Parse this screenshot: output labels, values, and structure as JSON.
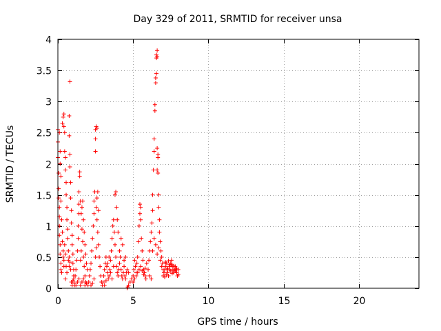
{
  "chart_data": {
    "type": "scatter",
    "title": "Day 329 of 2011, SRMTID for receiver unsa",
    "xlabel": "GPS time / hours",
    "ylabel": "SRMTID / TECUs",
    "xlim": [
      0,
      24
    ],
    "ylim": [
      0,
      4
    ],
    "x_ticks": [
      0,
      5,
      10,
      15,
      20
    ],
    "x_tick_labels": [
      "0",
      "5",
      "10",
      "15",
      "20"
    ],
    "y_ticks": [
      0,
      0.5,
      1,
      1.5,
      2,
      2.5,
      3,
      3.5,
      4
    ],
    "y_tick_labels": [
      "0",
      "0.5",
      "1",
      "1.5",
      "2",
      "2.5",
      "3",
      "3.5",
      "4"
    ],
    "grid": true,
    "marker": "+",
    "marker_color": "#ff0000",
    "series": [
      {
        "name": "SRMTID",
        "points": [
          [
            0.0,
            2.55
          ],
          [
            0.0,
            2.35
          ],
          [
            0.0,
            2.1
          ],
          [
            0.05,
            1.85
          ],
          [
            0.05,
            1.6
          ],
          [
            0.05,
            1.45
          ],
          [
            0.1,
            1.3
          ],
          [
            0.1,
            1.15
          ],
          [
            0.1,
            1.0
          ],
          [
            0.1,
            0.85
          ],
          [
            0.15,
            0.7
          ],
          [
            0.15,
            0.55
          ],
          [
            0.2,
            0.4
          ],
          [
            0.2,
            0.3
          ],
          [
            0.25,
            0.25
          ],
          [
            0.1,
            2.5
          ],
          [
            0.15,
            2.2
          ],
          [
            0.15,
            2.0
          ],
          [
            0.2,
            1.8
          ],
          [
            0.2,
            1.4
          ],
          [
            0.25,
            1.1
          ],
          [
            0.3,
            0.9
          ],
          [
            0.3,
            0.75
          ],
          [
            0.35,
            0.6
          ],
          [
            0.35,
            0.5
          ],
          [
            0.4,
            0.45
          ],
          [
            0.4,
            0.35
          ],
          [
            0.3,
            2.65
          ],
          [
            0.35,
            2.75
          ],
          [
            0.4,
            2.8
          ],
          [
            0.4,
            2.6
          ],
          [
            0.45,
            2.5
          ],
          [
            0.45,
            2.2
          ],
          [
            0.5,
            2.1
          ],
          [
            0.5,
            1.9
          ],
          [
            0.55,
            1.7
          ],
          [
            0.55,
            1.5
          ],
          [
            0.6,
            1.3
          ],
          [
            0.6,
            1.1
          ],
          [
            0.65,
            0.95
          ],
          [
            0.65,
            0.8
          ],
          [
            0.7,
            0.6
          ],
          [
            0.7,
            0.45
          ],
          [
            0.75,
            0.35
          ],
          [
            0.75,
            2.45
          ],
          [
            0.8,
            2.15
          ],
          [
            0.8,
            1.95
          ],
          [
            0.8,
            3.32
          ],
          [
            0.75,
            2.77
          ],
          [
            0.85,
            1.7
          ],
          [
            0.85,
            1.45
          ],
          [
            0.9,
            1.25
          ],
          [
            0.9,
            1.05
          ],
          [
            0.95,
            0.85
          ],
          [
            0.95,
            0.7
          ],
          [
            1.0,
            0.55
          ],
          [
            1.0,
            0.4
          ],
          [
            1.05,
            0.3
          ],
          [
            1.05,
            0.15
          ],
          [
            1.1,
            0.08
          ],
          [
            1.1,
            0.05
          ],
          [
            0.9,
            0.1
          ],
          [
            0.95,
            0.05
          ],
          [
            1.0,
            0.12
          ],
          [
            1.05,
            0.2
          ],
          [
            0.85,
            0.3
          ],
          [
            0.8,
            0.42
          ],
          [
            0.75,
            0.5
          ],
          [
            0.6,
            0.25
          ],
          [
            0.5,
            0.15
          ],
          [
            0.5,
            0.55
          ],
          [
            0.55,
            0.35
          ],
          [
            0.45,
            0.7
          ],
          [
            1.15,
            0.2
          ],
          [
            1.2,
            0.3
          ],
          [
            1.25,
            0.45
          ],
          [
            1.3,
            0.6
          ],
          [
            1.35,
            0.8
          ],
          [
            1.35,
            1.0
          ],
          [
            1.4,
            1.2
          ],
          [
            1.4,
            1.35
          ],
          [
            1.4,
            1.55
          ],
          [
            1.45,
            1.8
          ],
          [
            1.45,
            1.87
          ],
          [
            1.5,
            1.4
          ],
          [
            1.55,
            1.2
          ],
          [
            1.6,
            0.95
          ],
          [
            1.65,
            0.75
          ],
          [
            1.7,
            0.5
          ],
          [
            1.75,
            0.35
          ],
          [
            1.8,
            0.2
          ],
          [
            1.85,
            0.1
          ],
          [
            1.2,
            0.05
          ],
          [
            1.3,
            0.1
          ],
          [
            1.4,
            0.15
          ],
          [
            1.5,
            0.05
          ],
          [
            1.6,
            0.1
          ],
          [
            1.7,
            0.15
          ],
          [
            1.8,
            0.05
          ],
          [
            1.9,
            0.08
          ],
          [
            1.5,
            0.45
          ],
          [
            1.55,
            0.6
          ],
          [
            1.6,
            1.3
          ],
          [
            1.65,
            1.4
          ],
          [
            1.7,
            1.1
          ],
          [
            1.75,
            0.9
          ],
          [
            1.8,
            0.7
          ],
          [
            1.85,
            0.55
          ],
          [
            1.9,
            0.4
          ],
          [
            1.95,
            0.3
          ],
          [
            2.0,
            0.05
          ],
          [
            2.05,
            0.1
          ],
          [
            2.1,
            0.2
          ],
          [
            2.15,
            0.3
          ],
          [
            2.2,
            0.4
          ],
          [
            2.25,
            0.6
          ],
          [
            2.3,
            0.8
          ],
          [
            2.35,
            1.0
          ],
          [
            2.4,
            1.2
          ],
          [
            2.4,
            1.4
          ],
          [
            2.45,
            1.55
          ],
          [
            2.5,
            2.55
          ],
          [
            2.55,
            2.6
          ],
          [
            2.6,
            2.57
          ],
          [
            2.5,
            2.4
          ],
          [
            2.5,
            2.2
          ],
          [
            2.55,
            1.3
          ],
          [
            2.6,
            1.1
          ],
          [
            2.65,
            0.9
          ],
          [
            2.7,
            0.7
          ],
          [
            2.75,
            0.5
          ],
          [
            2.8,
            0.35
          ],
          [
            2.85,
            0.2
          ],
          [
            2.9,
            0.1
          ],
          [
            2.95,
            0.05
          ],
          [
            2.2,
            0.05
          ],
          [
            2.3,
            0.08
          ],
          [
            2.4,
            0.15
          ],
          [
            2.5,
            0.5
          ],
          [
            2.55,
            0.65
          ],
          [
            2.6,
            1.45
          ],
          [
            2.65,
            1.55
          ],
          [
            2.7,
            1.25
          ],
          [
            3.0,
            0.1
          ],
          [
            3.05,
            0.2
          ],
          [
            3.1,
            0.3
          ],
          [
            3.15,
            0.4
          ],
          [
            3.2,
            0.5
          ],
          [
            3.25,
            0.35
          ],
          [
            3.3,
            0.25
          ],
          [
            3.35,
            0.15
          ],
          [
            3.4,
            0.2
          ],
          [
            3.45,
            0.3
          ],
          [
            3.5,
            0.45
          ],
          [
            3.55,
            0.6
          ],
          [
            3.6,
            0.8
          ],
          [
            3.65,
            1.0
          ],
          [
            3.7,
            1.1
          ],
          [
            3.75,
            0.9
          ],
          [
            3.8,
            0.7
          ],
          [
            3.85,
            0.5
          ],
          [
            3.9,
            0.35
          ],
          [
            3.95,
            0.25
          ],
          [
            3.1,
            0.05
          ],
          [
            3.2,
            0.12
          ],
          [
            3.3,
            0.4
          ],
          [
            3.4,
            0.5
          ],
          [
            3.5,
            0.25
          ],
          [
            3.6,
            0.15
          ],
          [
            3.7,
            0.35
          ],
          [
            3.8,
            1.5
          ],
          [
            3.85,
            1.55
          ],
          [
            3.9,
            1.3
          ],
          [
            3.95,
            1.1
          ],
          [
            4.0,
            0.9
          ],
          [
            4.0,
            0.2
          ],
          [
            4.05,
            0.3
          ],
          [
            4.1,
            0.4
          ],
          [
            4.15,
            0.5
          ],
          [
            4.2,
            0.3
          ],
          [
            4.25,
            0.2
          ],
          [
            4.3,
            0.15
          ],
          [
            4.35,
            0.25
          ],
          [
            4.4,
            0.35
          ],
          [
            4.45,
            0.2
          ],
          [
            4.5,
            0.15
          ],
          [
            4.55,
            0.25
          ],
          [
            4.6,
            0.3
          ],
          [
            4.7,
            0.25
          ],
          [
            4.8,
            0.1
          ],
          [
            4.9,
            0.15
          ],
          [
            4.6,
            0.0
          ],
          [
            4.65,
            0.02
          ],
          [
            4.7,
            0.05
          ],
          [
            4.1,
            0.6
          ],
          [
            4.2,
            0.8
          ],
          [
            4.3,
            0.7
          ],
          [
            4.4,
            0.45
          ],
          [
            4.5,
            0.5
          ],
          [
            5.0,
            0.2
          ],
          [
            5.05,
            0.3
          ],
          [
            5.1,
            0.45
          ],
          [
            5.15,
            0.35
          ],
          [
            5.2,
            0.25
          ],
          [
            5.25,
            0.4
          ],
          [
            5.3,
            0.5
          ],
          [
            5.35,
            0.75
          ],
          [
            5.4,
            1.0
          ],
          [
            5.45,
            1.2
          ],
          [
            5.45,
            1.35
          ],
          [
            5.5,
            1.3
          ],
          [
            5.5,
            1.1
          ],
          [
            5.55,
            0.8
          ],
          [
            5.6,
            0.6
          ],
          [
            5.65,
            0.45
          ],
          [
            5.7,
            0.3
          ],
          [
            5.75,
            0.25
          ],
          [
            5.8,
            0.2
          ],
          [
            5.85,
            0.15
          ],
          [
            5.0,
            0.1
          ],
          [
            5.1,
            0.15
          ],
          [
            5.2,
            0.2
          ],
          [
            5.3,
            0.25
          ],
          [
            5.4,
            0.3
          ],
          [
            5.5,
            0.35
          ],
          [
            5.6,
            0.28
          ],
          [
            5.7,
            0.22
          ],
          [
            5.8,
            0.32
          ],
          [
            5.9,
            0.4
          ],
          [
            6.0,
            0.3
          ],
          [
            6.05,
            0.45
          ],
          [
            6.1,
            0.6
          ],
          [
            6.15,
            0.75
          ],
          [
            6.2,
            0.9
          ],
          [
            6.25,
            1.05
          ],
          [
            6.3,
            1.25
          ],
          [
            6.3,
            1.5
          ],
          [
            6.35,
            1.9
          ],
          [
            6.4,
            2.2
          ],
          [
            6.4,
            2.4
          ],
          [
            6.45,
            2.85
          ],
          [
            6.45,
            2.95
          ],
          [
            6.5,
            3.3
          ],
          [
            6.5,
            3.38
          ],
          [
            6.55,
            3.45
          ],
          [
            6.55,
            3.7
          ],
          [
            6.55,
            3.75
          ],
          [
            6.6,
            3.82
          ],
          [
            6.6,
            3.72
          ],
          [
            6.6,
            2.25
          ],
          [
            6.65,
            2.15
          ],
          [
            6.65,
            2.1
          ],
          [
            6.6,
            1.9
          ],
          [
            6.65,
            1.85
          ],
          [
            6.7,
            1.5
          ],
          [
            6.7,
            1.3
          ],
          [
            6.75,
            1.1
          ],
          [
            6.75,
            0.9
          ],
          [
            6.8,
            0.75
          ],
          [
            6.85,
            0.6
          ],
          [
            6.9,
            0.5
          ],
          [
            6.95,
            0.4
          ],
          [
            7.0,
            0.3
          ],
          [
            6.1,
            0.2
          ],
          [
            6.2,
            0.15
          ],
          [
            6.3,
            0.6
          ],
          [
            6.4,
            0.8
          ],
          [
            6.5,
            0.7
          ],
          [
            6.6,
            0.55
          ],
          [
            6.7,
            0.65
          ],
          [
            6.8,
            0.45
          ],
          [
            6.9,
            0.35
          ],
          [
            7.0,
            0.2
          ],
          [
            7.05,
            0.25
          ],
          [
            7.1,
            0.3
          ],
          [
            7.15,
            0.35
          ],
          [
            7.2,
            0.4
          ],
          [
            7.25,
            0.3
          ],
          [
            7.3,
            0.25
          ],
          [
            7.35,
            0.2
          ],
          [
            7.4,
            0.3
          ],
          [
            7.45,
            0.35
          ],
          [
            7.5,
            0.4
          ],
          [
            7.55,
            0.45
          ],
          [
            7.6,
            0.35
          ],
          [
            7.65,
            0.3
          ],
          [
            7.7,
            0.25
          ],
          [
            7.75,
            0.3
          ],
          [
            7.8,
            0.35
          ],
          [
            7.85,
            0.3
          ],
          [
            7.9,
            0.25
          ],
          [
            7.95,
            0.2
          ],
          [
            8.0,
            0.22
          ],
          [
            7.1,
            0.18
          ],
          [
            7.2,
            0.22
          ],
          [
            7.3,
            0.32
          ],
          [
            7.4,
            0.38
          ],
          [
            7.5,
            0.28
          ],
          [
            7.6,
            0.24
          ],
          [
            7.7,
            0.36
          ],
          [
            7.8,
            0.28
          ],
          [
            7.9,
            0.32
          ],
          [
            8.0,
            0.3
          ],
          [
            7.15,
            0.42
          ],
          [
            7.35,
            0.44
          ],
          [
            7.55,
            0.38
          ]
        ]
      }
    ]
  }
}
